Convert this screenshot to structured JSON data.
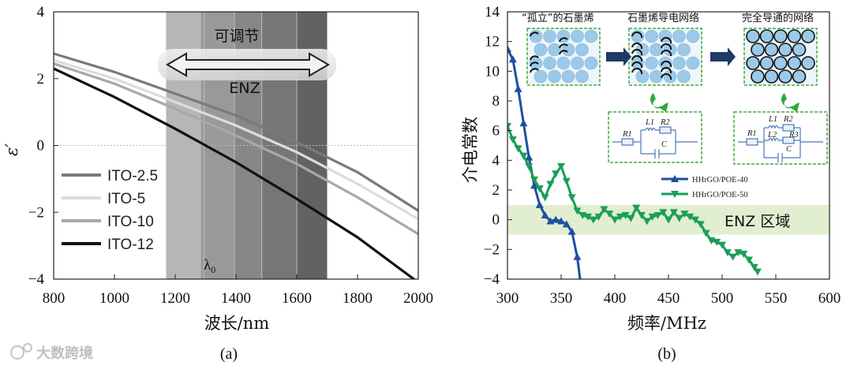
{
  "chart_data": [
    {
      "type": "line",
      "panel": "(a)",
      "ylabel": "ε′",
      "xlabel": "波长/nm",
      "xlim": [
        800,
        2000
      ],
      "ylim": [
        -4,
        4
      ],
      "xticks": [
        "800",
        "1000",
        "1200",
        "1400",
        "1600",
        "1800",
        "2000"
      ],
      "yticks": [
        "4",
        "2",
        "0",
        "−2",
        "−4"
      ],
      "band_text_top": "可调节",
      "band_text_bottom": "ENZ",
      "lambda_label": "λ0",
      "tunable_range": [
        1170,
        1700
      ],
      "bands": [
        {
          "from": 1170,
          "to": 1700,
          "shade": "#9a9a9a"
        },
        {
          "from": 1285,
          "to": 1700,
          "shade": "#8e8e8e"
        },
        {
          "from": 1395,
          "to": 1700,
          "shade": "#808080"
        },
        {
          "from": 1485,
          "to": 1700,
          "shade": "#707070"
        },
        {
          "from": 1600,
          "to": 1700,
          "shade": "#5a5a5a"
        }
      ],
      "lambda_lines": [
        1295,
        1395,
        1485,
        1600
      ],
      "series": [
        {
          "name": "ITO-2.5",
          "color": "#7a7a7a",
          "x": [
            800,
            1000,
            1200,
            1400,
            1600,
            1800,
            2000
          ],
          "y": [
            2.75,
            2.2,
            1.55,
            0.9,
            0.1,
            -0.8,
            -1.95
          ]
        },
        {
          "name": "ITO-5",
          "color": "#dcdcdc",
          "x": [
            800,
            1000,
            1200,
            1400,
            1600,
            1800,
            2000
          ],
          "y": [
            2.55,
            2.0,
            1.3,
            0.6,
            -0.2,
            -1.15,
            -2.2
          ]
        },
        {
          "name": "ITO-10",
          "color": "#a8a8a8",
          "x": [
            800,
            1000,
            1200,
            1400,
            1600,
            1800,
            2000
          ],
          "y": [
            2.45,
            1.85,
            1.1,
            0.3,
            -0.55,
            -1.55,
            -2.65
          ]
        },
        {
          "name": "ITO-12",
          "color": "#111111",
          "x": [
            800,
            1000,
            1200,
            1400,
            1600,
            1800,
            2000
          ],
          "y": [
            2.3,
            1.45,
            0.5,
            -0.5,
            -1.6,
            -2.75,
            -4.1
          ]
        }
      ],
      "caption": "(a)"
    },
    {
      "type": "line",
      "panel": "(b)",
      "ylabel": "介电常数",
      "xlabel": "频率/MHz",
      "xlim": [
        300,
        600
      ],
      "ylim": [
        -4,
        14
      ],
      "xticks": [
        "300",
        "350",
        "400",
        "450",
        "500",
        "550",
        "600"
      ],
      "yticks": [
        "14",
        "12",
        "10",
        "8",
        "6",
        "4",
        "2",
        "0",
        "−2",
        "−4"
      ],
      "enz_band": [
        -1,
        1
      ],
      "enz_label": "ENZ 区域",
      "series": [
        {
          "name": "HHrGO/POE-40",
          "color": "#1f4fa0",
          "marker": "triangle-up",
          "x": [
            300,
            305,
            310,
            315,
            320,
            325,
            330,
            335,
            340,
            345,
            350,
            355,
            360,
            365,
            368
          ],
          "y": [
            11.5,
            10.8,
            8.8,
            6.5,
            4.2,
            2.3,
            1.0,
            0.3,
            -0.1,
            0.0,
            -0.1,
            -0.3,
            -0.8,
            -2.5,
            -4.2
          ]
        },
        {
          "name": "HHrGO/POE-50",
          "color": "#1a9e5a",
          "marker": "triangle-down",
          "x": [
            300,
            305,
            310,
            315,
            320,
            325,
            330,
            335,
            340,
            345,
            350,
            355,
            360,
            365,
            370,
            375,
            380,
            385,
            390,
            395,
            400,
            405,
            410,
            415,
            420,
            425,
            430,
            435,
            440,
            445,
            450,
            455,
            460,
            465,
            470,
            475,
            480,
            485,
            490,
            495,
            500,
            505,
            510,
            515,
            520,
            525,
            530,
            533
          ],
          "y": [
            6.3,
            5.4,
            4.8,
            4.3,
            3.6,
            2.7,
            2.1,
            1.5,
            2.4,
            3.1,
            3.6,
            2.6,
            1.5,
            0.6,
            0.3,
            0.2,
            0.0,
            0.2,
            0.7,
            0.4,
            0.0,
            0.2,
            0.3,
            0.1,
            0.8,
            0.3,
            -0.1,
            0.2,
            0.3,
            0.5,
            0.0,
            0.5,
            0.1,
            0.4,
            0.2,
            0.0,
            -0.3,
            -0.9,
            -1.4,
            -1.5,
            -1.7,
            -2.2,
            -2.5,
            -2.2,
            -2.3,
            -2.7,
            -3.2,
            -3.5
          ]
        }
      ],
      "inset_labels": [
        "“孤立”的石墨烯",
        "石墨烯导电网络",
        "完全导通的网络"
      ],
      "circuit_labels": [
        "R1",
        "L1",
        "R2",
        "C",
        "R1",
        "L1",
        "R2",
        "L2",
        "R3",
        "C"
      ],
      "caption": "(b)"
    }
  ],
  "watermark": "大数跨境"
}
